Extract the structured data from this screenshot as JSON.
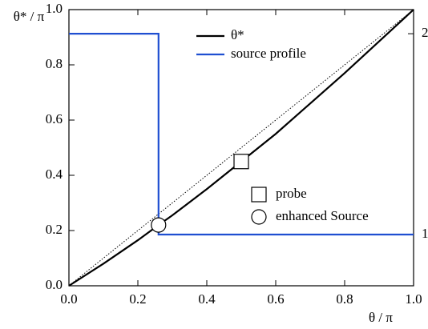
{
  "chart_data": {
    "type": "line",
    "ylabel": "θ* / π",
    "xlabel": "θ / π",
    "xlim": [
      0,
      1
    ],
    "ylim": [
      0,
      1
    ],
    "y2lim": [
      0.745,
      2.12
    ],
    "xticks": [
      {
        "value": 0,
        "label": "0.0"
      },
      0.2,
      0.4,
      0.6,
      0.8,
      {
        "value": 1,
        "label": "1.0"
      }
    ],
    "yticks": [
      {
        "value": 0,
        "label": "0.0"
      },
      0.2,
      0.4,
      0.6,
      0.8,
      {
        "value": 1,
        "label": "1.0"
      }
    ],
    "y2ticks": [
      1,
      2
    ],
    "series": [
      {
        "name": "θ*",
        "color": "#000000",
        "x": [
          0,
          0.1,
          0.2,
          0.26,
          0.3,
          0.4,
          0.5,
          0.6,
          0.7,
          0.8,
          0.9,
          1
        ],
        "values": [
          0,
          0.08,
          0.165,
          0.22,
          0.255,
          0.35,
          0.45,
          0.55,
          0.66,
          0.77,
          0.885,
          1
        ]
      },
      {
        "name": "source profile",
        "color": "#1f4fd1",
        "axis": "y2",
        "x": [
          0,
          0.26,
          0.26,
          1
        ],
        "values": [
          2,
          2,
          1,
          1
        ]
      }
    ],
    "reference": {
      "x": [
        0,
        1
      ],
      "values": [
        0,
        1
      ]
    },
    "points": [
      {
        "name": "probe",
        "marker": "square",
        "x": 0.5,
        "y": 0.45
      },
      {
        "name": "enhanced Source",
        "marker": "circle",
        "x": 0.26,
        "y": 0.22
      }
    ]
  }
}
